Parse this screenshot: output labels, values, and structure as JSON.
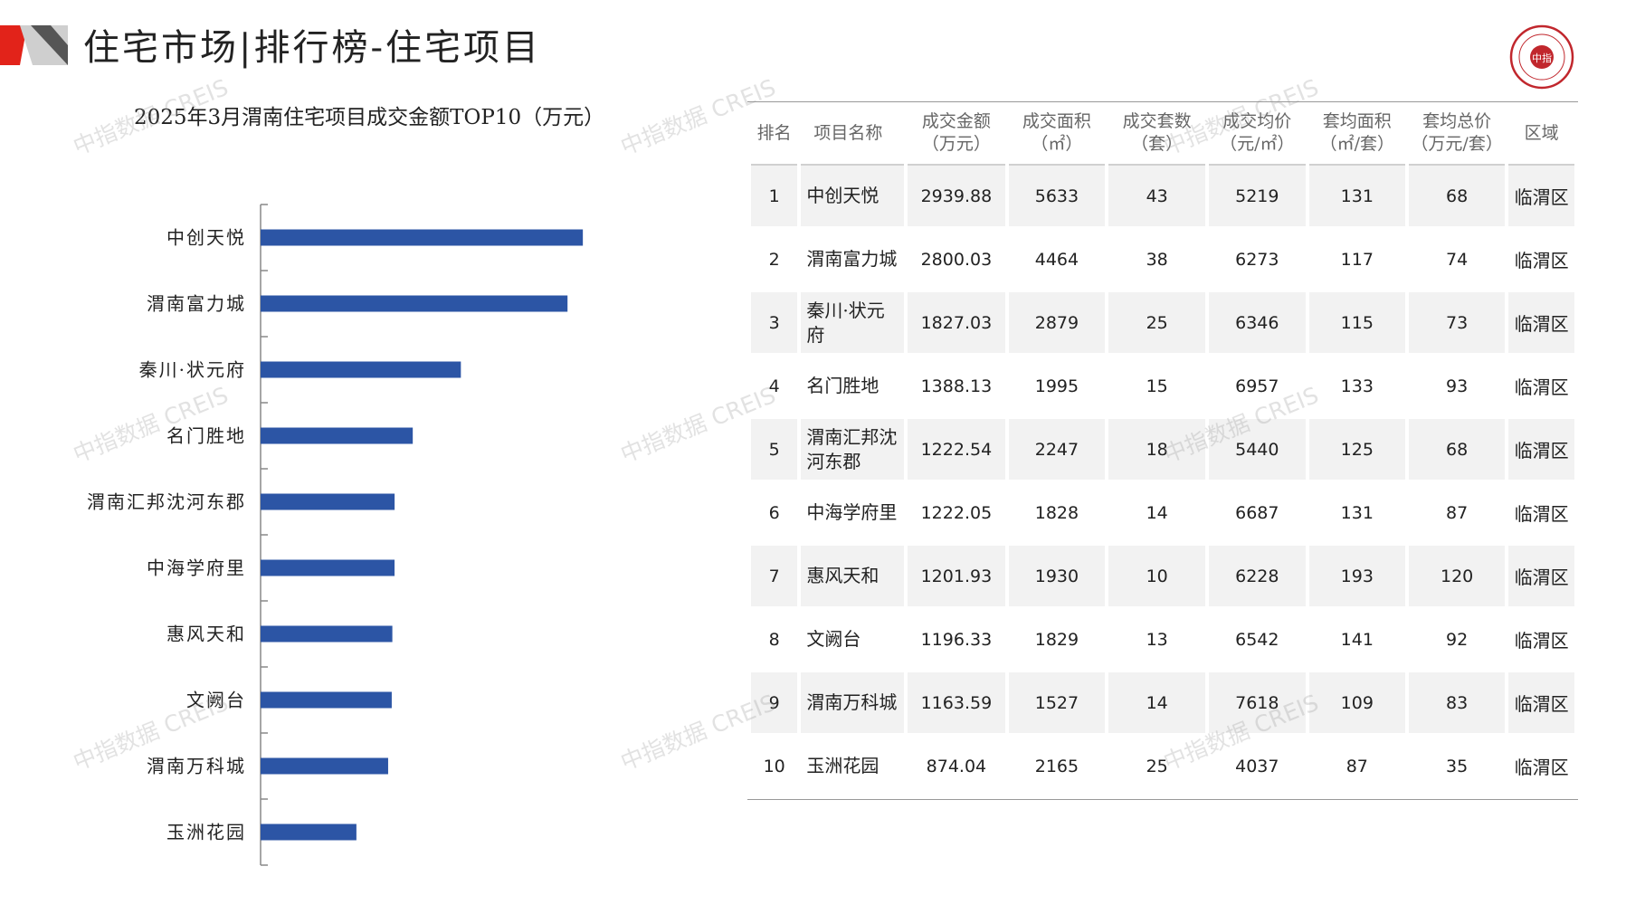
{
  "page": {
    "title": "住宅市场|排行榜-住宅项目",
    "watermark": "中指数据 CREIS",
    "seal_text": "中指"
  },
  "colors": {
    "bar": "#2c55a5",
    "accent_red": "#e2231a"
  },
  "chart_data": {
    "type": "bar",
    "orientation": "horizontal",
    "title": "2025年3月渭南住宅项目成交金额TOP10（万元）",
    "categories": [
      "中创天悦",
      "渭南富力城",
      "秦川·状元府",
      "名门胜地",
      "渭南汇邦沈河东郡",
      "中海学府里",
      "惠风天和",
      "文阙台",
      "渭南万科城",
      "玉洲花园"
    ],
    "values": [
      2939.88,
      2800.03,
      1827.03,
      1388.13,
      1222.54,
      1222.05,
      1201.93,
      1196.33,
      1163.59,
      874.04
    ],
    "xlim": [
      0,
      3500
    ],
    "grid": false,
    "legend": "none"
  },
  "table": {
    "headers": [
      [
        "排名"
      ],
      [
        "项目名称"
      ],
      [
        "成交金额",
        "（万元）"
      ],
      [
        "成交面积",
        "（㎡）"
      ],
      [
        "成交套数",
        "（套）"
      ],
      [
        "成交均价",
        "（元/㎡）"
      ],
      [
        "套均面积",
        "（㎡/套）"
      ],
      [
        "套均总价",
        "（万元/套）"
      ],
      [
        "区域"
      ]
    ],
    "rows": [
      {
        "rank": "1",
        "name": "中创天悦",
        "amount": "2939.88",
        "area": "5633",
        "units": "43",
        "price": "5219",
        "avg_area": "131",
        "avg_total": "68",
        "region": "临渭区"
      },
      {
        "rank": "2",
        "name": "渭南富力城",
        "amount": "2800.03",
        "area": "4464",
        "units": "38",
        "price": "6273",
        "avg_area": "117",
        "avg_total": "74",
        "region": "临渭区"
      },
      {
        "rank": "3",
        "name": "秦川·状元府",
        "amount": "1827.03",
        "area": "2879",
        "units": "25",
        "price": "6346",
        "avg_area": "115",
        "avg_total": "73",
        "region": "临渭区"
      },
      {
        "rank": "4",
        "name": "名门胜地",
        "amount": "1388.13",
        "area": "1995",
        "units": "15",
        "price": "6957",
        "avg_area": "133",
        "avg_total": "93",
        "region": "临渭区"
      },
      {
        "rank": "5",
        "name": "渭南汇邦沈河东郡",
        "amount": "1222.54",
        "area": "2247",
        "units": "18",
        "price": "5440",
        "avg_area": "125",
        "avg_total": "68",
        "region": "临渭区"
      },
      {
        "rank": "6",
        "name": "中海学府里",
        "amount": "1222.05",
        "area": "1828",
        "units": "14",
        "price": "6687",
        "avg_area": "131",
        "avg_total": "87",
        "region": "临渭区"
      },
      {
        "rank": "7",
        "name": "惠风天和",
        "amount": "1201.93",
        "area": "1930",
        "units": "10",
        "price": "6228",
        "avg_area": "193",
        "avg_total": "120",
        "region": "临渭区"
      },
      {
        "rank": "8",
        "name": "文阙台",
        "amount": "1196.33",
        "area": "1829",
        "units": "13",
        "price": "6542",
        "avg_area": "141",
        "avg_total": "92",
        "region": "临渭区"
      },
      {
        "rank": "9",
        "name": "渭南万科城",
        "amount": "1163.59",
        "area": "1527",
        "units": "14",
        "price": "7618",
        "avg_area": "109",
        "avg_total": "83",
        "region": "临渭区"
      },
      {
        "rank": "10",
        "name": "玉洲花园",
        "amount": "874.04",
        "area": "2165",
        "units": "25",
        "price": "4037",
        "avg_area": "87",
        "avg_total": "35",
        "region": "临渭区"
      }
    ]
  }
}
